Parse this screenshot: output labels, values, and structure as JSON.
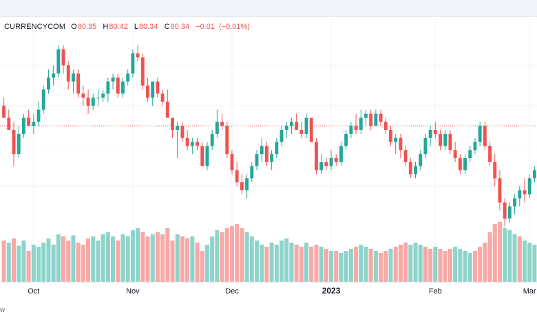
{
  "topbar": {},
  "legend": {
    "symbol": "CURRENCYCOM",
    "open_label": "O",
    "open": "80.35",
    "high_label": "H",
    "high": "80.42",
    "low_label": "L",
    "low": "80.34",
    "close_label": "C",
    "close": "80.34",
    "change": "−0.01",
    "change_pct": "(−0.01%)"
  },
  "footer": {
    "text": "w"
  },
  "colors": {
    "up": "#26a69a",
    "down": "#ef5350",
    "volume_up": "#8fd4cb",
    "volume_down": "#f7a9a7",
    "grid": "#f0f3fa",
    "price_line": "#ef5350"
  },
  "chart_data": {
    "type": "candlestick",
    "x_tick_labels": [
      "Oct",
      "Nov",
      "Dec",
      "2023",
      "Feb",
      "Mar"
    ],
    "x_tick_index": [
      6,
      26,
      46,
      66,
      87,
      106
    ],
    "ylim": [
      72,
      116
    ],
    "last_price": 95,
    "candles": [
      {
        "o": 100,
        "h": 102,
        "l": 97,
        "c": 97
      },
      {
        "o": 97,
        "h": 99,
        "l": 94,
        "c": 94
      },
      {
        "o": 94,
        "h": 96,
        "l": 85,
        "c": 88
      },
      {
        "o": 88,
        "h": 95,
        "l": 87,
        "c": 93
      },
      {
        "o": 93,
        "h": 98,
        "l": 92,
        "c": 97
      },
      {
        "o": 97,
        "h": 99,
        "l": 95,
        "c": 95
      },
      {
        "o": 95,
        "h": 98,
        "l": 93,
        "c": 96
      },
      {
        "o": 96,
        "h": 101,
        "l": 95,
        "c": 99
      },
      {
        "o": 99,
        "h": 105,
        "l": 98,
        "c": 104
      },
      {
        "o": 104,
        "h": 109,
        "l": 103,
        "c": 107
      },
      {
        "o": 107,
        "h": 110,
        "l": 105,
        "c": 108
      },
      {
        "o": 108,
        "h": 115,
        "l": 107,
        "c": 114
      },
      {
        "o": 114,
        "h": 115,
        "l": 108,
        "c": 110
      },
      {
        "o": 110,
        "h": 111,
        "l": 104,
        "c": 106
      },
      {
        "o": 106,
        "h": 109,
        "l": 103,
        "c": 108
      },
      {
        "o": 108,
        "h": 109,
        "l": 102,
        "c": 103
      },
      {
        "o": 103,
        "h": 105,
        "l": 100,
        "c": 102
      },
      {
        "o": 102,
        "h": 104,
        "l": 98,
        "c": 100
      },
      {
        "o": 100,
        "h": 103,
        "l": 99,
        "c": 102
      },
      {
        "o": 102,
        "h": 104,
        "l": 100,
        "c": 102
      },
      {
        "o": 102,
        "h": 104,
        "l": 101,
        "c": 103
      },
      {
        "o": 103,
        "h": 107,
        "l": 101,
        "c": 106
      },
      {
        "o": 106,
        "h": 108,
        "l": 104,
        "c": 107
      },
      {
        "o": 107,
        "h": 108,
        "l": 102,
        "c": 103
      },
      {
        "o": 103,
        "h": 107,
        "l": 102,
        "c": 106
      },
      {
        "o": 106,
        "h": 109,
        "l": 105,
        "c": 108
      },
      {
        "o": 108,
        "h": 114,
        "l": 107,
        "c": 113
      },
      {
        "o": 113,
        "h": 115,
        "l": 111,
        "c": 112
      },
      {
        "o": 112,
        "h": 113,
        "l": 104,
        "c": 105
      },
      {
        "o": 105,
        "h": 107,
        "l": 101,
        "c": 102
      },
      {
        "o": 102,
        "h": 106,
        "l": 100,
        "c": 106
      },
      {
        "o": 106,
        "h": 107,
        "l": 102,
        "c": 103
      },
      {
        "o": 103,
        "h": 104,
        "l": 100,
        "c": 101
      },
      {
        "o": 101,
        "h": 104,
        "l": 97,
        "c": 97
      },
      {
        "o": 97,
        "h": 97,
        "l": 92,
        "c": 94
      },
      {
        "o": 94,
        "h": 96,
        "l": 87,
        "c": 95
      },
      {
        "o": 95,
        "h": 96,
        "l": 91,
        "c": 92
      },
      {
        "o": 92,
        "h": 94,
        "l": 89,
        "c": 90
      },
      {
        "o": 90,
        "h": 92,
        "l": 88,
        "c": 91
      },
      {
        "o": 91,
        "h": 92,
        "l": 89,
        "c": 90
      },
      {
        "o": 90,
        "h": 91,
        "l": 85,
        "c": 85
      },
      {
        "o": 85,
        "h": 91,
        "l": 84,
        "c": 90
      },
      {
        "o": 90,
        "h": 94,
        "l": 89,
        "c": 93
      },
      {
        "o": 93,
        "h": 99,
        "l": 92,
        "c": 96
      },
      {
        "o": 96,
        "h": 98,
        "l": 94,
        "c": 95
      },
      {
        "o": 95,
        "h": 96,
        "l": 87,
        "c": 88
      },
      {
        "o": 88,
        "h": 89,
        "l": 83,
        "c": 84
      },
      {
        "o": 84,
        "h": 86,
        "l": 80,
        "c": 81
      },
      {
        "o": 81,
        "h": 83,
        "l": 78,
        "c": 79
      },
      {
        "o": 79,
        "h": 83,
        "l": 77,
        "c": 82
      },
      {
        "o": 82,
        "h": 86,
        "l": 81,
        "c": 85
      },
      {
        "o": 85,
        "h": 89,
        "l": 84,
        "c": 88
      },
      {
        "o": 88,
        "h": 92,
        "l": 86,
        "c": 90
      },
      {
        "o": 90,
        "h": 91,
        "l": 85,
        "c": 86
      },
      {
        "o": 86,
        "h": 89,
        "l": 84,
        "c": 88
      },
      {
        "o": 88,
        "h": 92,
        "l": 87,
        "c": 91
      },
      {
        "o": 91,
        "h": 95,
        "l": 90,
        "c": 94
      },
      {
        "o": 94,
        "h": 96,
        "l": 92,
        "c": 95
      },
      {
        "o": 95,
        "h": 97,
        "l": 93,
        "c": 96
      },
      {
        "o": 96,
        "h": 98,
        "l": 94,
        "c": 94
      },
      {
        "o": 94,
        "h": 96,
        "l": 92,
        "c": 93
      },
      {
        "o": 93,
        "h": 98,
        "l": 92,
        "c": 97
      },
      {
        "o": 97,
        "h": 97,
        "l": 91,
        "c": 91
      },
      {
        "o": 91,
        "h": 92,
        "l": 83,
        "c": 84
      },
      {
        "o": 84,
        "h": 88,
        "l": 83,
        "c": 86
      },
      {
        "o": 86,
        "h": 87,
        "l": 84,
        "c": 85
      },
      {
        "o": 85,
        "h": 89,
        "l": 84,
        "c": 87
      },
      {
        "o": 87,
        "h": 88,
        "l": 85,
        "c": 86
      },
      {
        "o": 86,
        "h": 91,
        "l": 85,
        "c": 90
      },
      {
        "o": 90,
        "h": 94,
        "l": 89,
        "c": 93
      },
      {
        "o": 93,
        "h": 96,
        "l": 92,
        "c": 95
      },
      {
        "o": 95,
        "h": 98,
        "l": 93,
        "c": 94
      },
      {
        "o": 94,
        "h": 99,
        "l": 93,
        "c": 97
      },
      {
        "o": 97,
        "h": 99,
        "l": 95,
        "c": 98
      },
      {
        "o": 98,
        "h": 99,
        "l": 94,
        "c": 95
      },
      {
        "o": 95,
        "h": 99,
        "l": 95,
        "c": 98
      },
      {
        "o": 98,
        "h": 99,
        "l": 95,
        "c": 96
      },
      {
        "o": 96,
        "h": 97,
        "l": 93,
        "c": 94
      },
      {
        "o": 94,
        "h": 95,
        "l": 90,
        "c": 91
      },
      {
        "o": 91,
        "h": 93,
        "l": 88,
        "c": 92
      },
      {
        "o": 92,
        "h": 93,
        "l": 87,
        "c": 89
      },
      {
        "o": 89,
        "h": 90,
        "l": 85,
        "c": 86
      },
      {
        "o": 86,
        "h": 87,
        "l": 82,
        "c": 83
      },
      {
        "o": 83,
        "h": 86,
        "l": 82,
        "c": 85
      },
      {
        "o": 85,
        "h": 89,
        "l": 84,
        "c": 88
      },
      {
        "o": 88,
        "h": 93,
        "l": 87,
        "c": 92
      },
      {
        "o": 92,
        "h": 95,
        "l": 90,
        "c": 94
      },
      {
        "o": 94,
        "h": 96,
        "l": 92,
        "c": 93
      },
      {
        "o": 93,
        "h": 94,
        "l": 89,
        "c": 90
      },
      {
        "o": 90,
        "h": 94,
        "l": 89,
        "c": 93
      },
      {
        "o": 93,
        "h": 94,
        "l": 88,
        "c": 89
      },
      {
        "o": 89,
        "h": 91,
        "l": 86,
        "c": 87
      },
      {
        "o": 87,
        "h": 88,
        "l": 83,
        "c": 84
      },
      {
        "o": 84,
        "h": 88,
        "l": 83,
        "c": 87
      },
      {
        "o": 87,
        "h": 90,
        "l": 86,
        "c": 89
      },
      {
        "o": 89,
        "h": 92,
        "l": 88,
        "c": 91
      },
      {
        "o": 91,
        "h": 96,
        "l": 90,
        "c": 95
      },
      {
        "o": 95,
        "h": 96,
        "l": 89,
        "c": 90
      },
      {
        "o": 90,
        "h": 91,
        "l": 85,
        "c": 86
      },
      {
        "o": 86,
        "h": 88,
        "l": 80,
        "c": 82
      },
      {
        "o": 82,
        "h": 84,
        "l": 74,
        "c": 76
      },
      {
        "o": 76,
        "h": 77,
        "l": 70,
        "c": 72
      },
      {
        "o": 72,
        "h": 76,
        "l": 71,
        "c": 75
      },
      {
        "o": 75,
        "h": 78,
        "l": 73,
        "c": 77
      },
      {
        "o": 77,
        "h": 80,
        "l": 75,
        "c": 79
      },
      {
        "o": 79,
        "h": 82,
        "l": 76,
        "c": 78
      },
      {
        "o": 78,
        "h": 83,
        "l": 77,
        "c": 82
      },
      {
        "o": 82,
        "h": 85,
        "l": 81,
        "c": 84
      }
    ],
    "volumes": [
      {
        "v": 40,
        "up": false
      },
      {
        "v": 38,
        "up": true
      },
      {
        "v": 42,
        "up": false
      },
      {
        "v": 35,
        "up": true
      },
      {
        "v": 40,
        "up": true
      },
      {
        "v": 30,
        "up": false
      },
      {
        "v": 36,
        "up": true
      },
      {
        "v": 34,
        "up": true
      },
      {
        "v": 38,
        "up": true
      },
      {
        "v": 42,
        "up": true
      },
      {
        "v": 36,
        "up": true
      },
      {
        "v": 46,
        "up": true
      },
      {
        "v": 44,
        "up": false
      },
      {
        "v": 40,
        "up": false
      },
      {
        "v": 45,
        "up": true
      },
      {
        "v": 38,
        "up": false
      },
      {
        "v": 36,
        "up": false
      },
      {
        "v": 42,
        "up": false
      },
      {
        "v": 44,
        "up": true
      },
      {
        "v": 40,
        "up": true
      },
      {
        "v": 46,
        "up": true
      },
      {
        "v": 48,
        "up": true
      },
      {
        "v": 44,
        "up": true
      },
      {
        "v": 40,
        "up": false
      },
      {
        "v": 46,
        "up": true
      },
      {
        "v": 44,
        "up": true
      },
      {
        "v": 50,
        "up": true
      },
      {
        "v": 52,
        "up": true
      },
      {
        "v": 48,
        "up": false
      },
      {
        "v": 44,
        "up": false
      },
      {
        "v": 46,
        "up": true
      },
      {
        "v": 48,
        "up": false
      },
      {
        "v": 46,
        "up": false
      },
      {
        "v": 52,
        "up": false
      },
      {
        "v": 40,
        "up": false
      },
      {
        "v": 46,
        "up": true
      },
      {
        "v": 44,
        "up": false
      },
      {
        "v": 42,
        "up": false
      },
      {
        "v": 44,
        "up": true
      },
      {
        "v": 38,
        "up": false
      },
      {
        "v": 30,
        "up": false
      },
      {
        "v": 36,
        "up": true
      },
      {
        "v": 44,
        "up": true
      },
      {
        "v": 50,
        "up": true
      },
      {
        "v": 48,
        "up": false
      },
      {
        "v": 52,
        "up": false
      },
      {
        "v": 54,
        "up": false
      },
      {
        "v": 56,
        "up": false
      },
      {
        "v": 52,
        "up": false
      },
      {
        "v": 48,
        "up": true
      },
      {
        "v": 44,
        "up": true
      },
      {
        "v": 40,
        "up": true
      },
      {
        "v": 36,
        "up": true
      },
      {
        "v": 34,
        "up": false
      },
      {
        "v": 38,
        "up": true
      },
      {
        "v": 36,
        "up": true
      },
      {
        "v": 40,
        "up": true
      },
      {
        "v": 42,
        "up": true
      },
      {
        "v": 38,
        "up": true
      },
      {
        "v": 36,
        "up": false
      },
      {
        "v": 34,
        "up": false
      },
      {
        "v": 38,
        "up": true
      },
      {
        "v": 34,
        "up": false
      },
      {
        "v": 36,
        "up": false
      },
      {
        "v": 34,
        "up": true
      },
      {
        "v": 32,
        "up": false
      },
      {
        "v": 30,
        "up": true
      },
      {
        "v": 30,
        "up": false
      },
      {
        "v": 28,
        "up": true
      },
      {
        "v": 30,
        "up": true
      },
      {
        "v": 32,
        "up": true
      },
      {
        "v": 34,
        "up": false
      },
      {
        "v": 36,
        "up": true
      },
      {
        "v": 34,
        "up": true
      },
      {
        "v": 32,
        "up": false
      },
      {
        "v": 30,
        "up": true
      },
      {
        "v": 28,
        "up": false
      },
      {
        "v": 30,
        "up": false
      },
      {
        "v": 32,
        "up": true
      },
      {
        "v": 34,
        "up": false
      },
      {
        "v": 36,
        "up": false
      },
      {
        "v": 38,
        "up": false
      },
      {
        "v": 36,
        "up": true
      },
      {
        "v": 38,
        "up": true
      },
      {
        "v": 36,
        "up": true
      },
      {
        "v": 34,
        "up": false
      },
      {
        "v": 32,
        "up": false
      },
      {
        "v": 34,
        "up": true
      },
      {
        "v": 32,
        "up": false
      },
      {
        "v": 30,
        "up": false
      },
      {
        "v": 32,
        "up": false
      },
      {
        "v": 34,
        "up": true
      },
      {
        "v": 32,
        "up": true
      },
      {
        "v": 30,
        "up": true
      },
      {
        "v": 28,
        "up": true
      },
      {
        "v": 30,
        "up": false
      },
      {
        "v": 34,
        "up": false
      },
      {
        "v": 38,
        "up": false
      },
      {
        "v": 48,
        "up": false
      },
      {
        "v": 56,
        "up": false
      },
      {
        "v": 58,
        "up": false
      },
      {
        "v": 52,
        "up": true
      },
      {
        "v": 50,
        "up": true
      },
      {
        "v": 46,
        "up": true
      },
      {
        "v": 44,
        "up": false
      },
      {
        "v": 40,
        "up": true
      },
      {
        "v": 38,
        "up": true
      },
      {
        "v": 36,
        "up": true
      }
    ],
    "vol_max": 60
  }
}
